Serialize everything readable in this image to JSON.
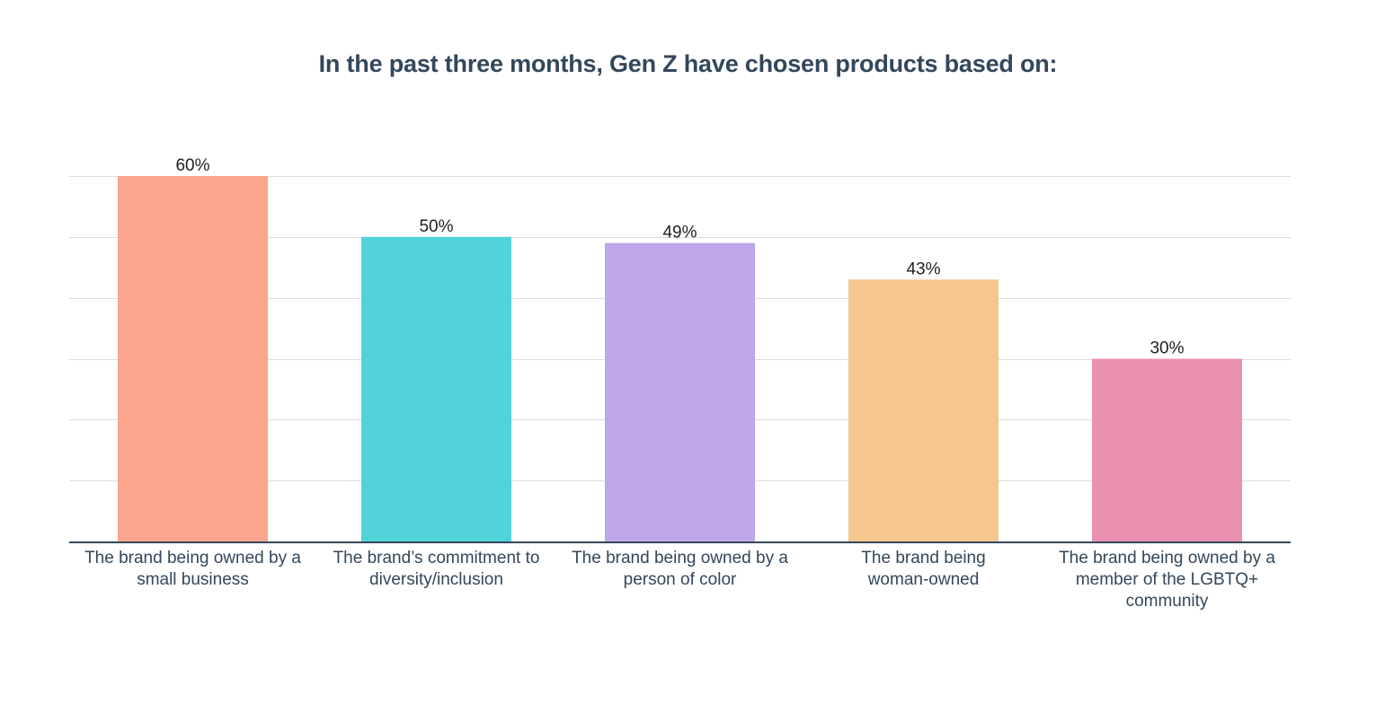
{
  "chart_data": {
    "type": "bar",
    "title": "In the past three months, Gen Z have chosen products based on:",
    "xlabel": "",
    "ylabel": "",
    "ylim": [
      0,
      60
    ],
    "grid": true,
    "categories": [
      "The brand being owned by a small business",
      "The brand’s commitment to diversity/inclusion",
      "The brand being owned by a person of color",
      "The brand being woman-owned",
      "The brand being owned by a member of the LGBTQ+ community"
    ],
    "category_lines": [
      [
        "The brand being owned by a",
        "small business"
      ],
      [
        "The brand’s commitment to",
        "diversity/inclusion"
      ],
      [
        "The brand being owned by a",
        "person of color"
      ],
      [
        "The brand being",
        "woman-owned"
      ],
      [
        "The brand being owned by a",
        "member of the LGBTQ+",
        "community"
      ]
    ],
    "values": [
      60,
      50,
      49,
      43,
      30
    ],
    "data_labels": [
      "60%",
      "50%",
      "49%",
      "43%",
      "30%"
    ],
    "colors": [
      "#fca58d",
      "#51d3d9",
      "#bea7e8",
      "#f5c78e",
      "#ea90b1"
    ]
  }
}
